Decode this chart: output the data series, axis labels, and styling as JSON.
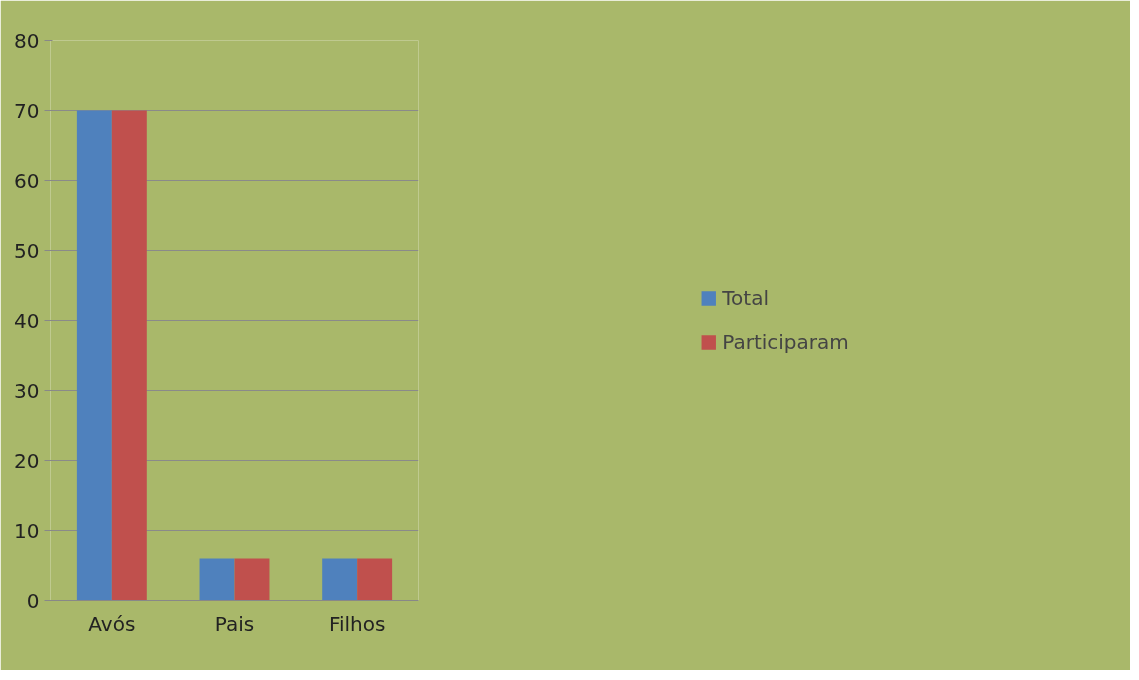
{
  "chart_data": {
    "type": "bar",
    "categories": [
      "Avós",
      "Pais",
      "Filhos"
    ],
    "series": [
      {
        "name": "Total",
        "color": "#4f81bd",
        "values": [
          70,
          6,
          6
        ]
      },
      {
        "name": "Participaram",
        "color": "#c0504d",
        "values": [
          70,
          6,
          6
        ]
      }
    ],
    "ylim": [
      0,
      80
    ],
    "yticks": [
      0,
      10,
      20,
      30,
      40,
      50,
      60,
      70,
      80
    ],
    "grid": "y",
    "legend": "right"
  }
}
